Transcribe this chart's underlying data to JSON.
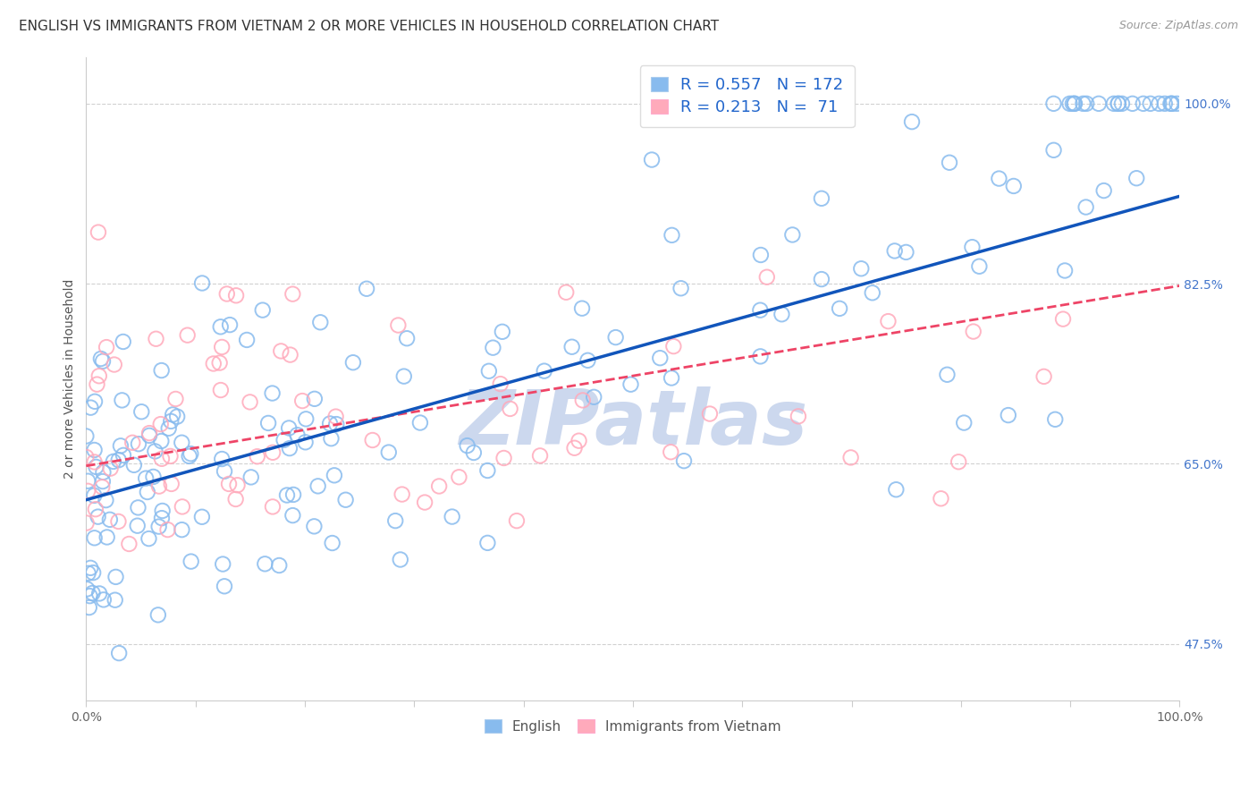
{
  "title": "ENGLISH VS IMMIGRANTS FROM VIETNAM 2 OR MORE VEHICLES IN HOUSEHOLD CORRELATION CHART",
  "source_text": "Source: ZipAtlas.com",
  "ylabel": "2 or more Vehicles in Household",
  "legend_labels": [
    "English",
    "Immigrants from Vietnam"
  ],
  "blue_R": 0.557,
  "blue_N": 172,
  "pink_R": 0.213,
  "pink_N": 71,
  "xmin": 0.0,
  "xmax": 1.0,
  "ymin": 0.42,
  "ymax": 1.045,
  "yticks": [
    0.475,
    0.65,
    0.825,
    1.0
  ],
  "ytick_labels": [
    "47.5%",
    "65.0%",
    "82.5%",
    "100.0%"
  ],
  "xticks": [
    0.0,
    0.1,
    0.2,
    0.3,
    0.4,
    0.5,
    0.6,
    0.7,
    0.8,
    0.9,
    1.0
  ],
  "xtick_labels": [
    "0.0%",
    "",
    "",
    "",
    "",
    "",
    "",
    "",
    "",
    "",
    "100.0%"
  ],
  "grid_color": "#cccccc",
  "blue_color": "#88bbee",
  "pink_color": "#ffaabb",
  "line_blue": "#1155bb",
  "line_pink": "#ee4466",
  "watermark_color": "#ccd8ee",
  "background_color": "#ffffff",
  "title_fontsize": 11,
  "axis_label_fontsize": 10,
  "tick_fontsize": 10,
  "legend_fontsize": 13,
  "blue_line_intercept": 0.615,
  "blue_line_slope": 0.295,
  "pink_line_intercept": 0.648,
  "pink_line_slope": 0.175
}
